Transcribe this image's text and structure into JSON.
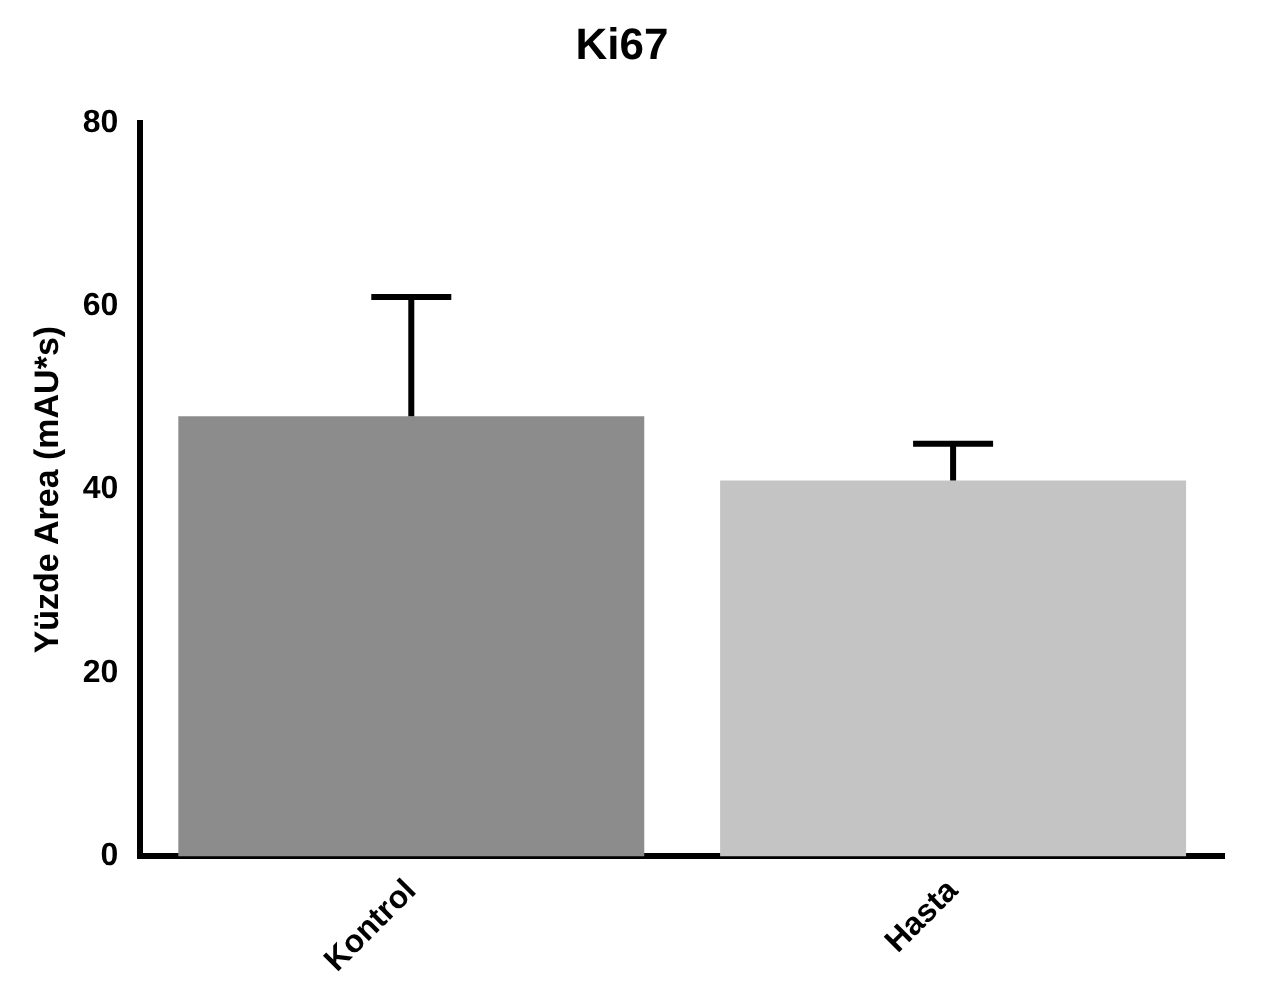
{
  "chart_data": {
    "type": "bar",
    "title": "Ki67",
    "ylabel": "Yüzde Area (mAU*s)",
    "categories": [
      "Kontrol",
      "Hasta"
    ],
    "values": [
      48,
      41
    ],
    "errors": [
      [
        48,
        61
      ],
      [
        41,
        45
      ]
    ],
    "colors": [
      "#8c8c8c",
      "#c4c4c4"
    ],
    "ylim": [
      0,
      80
    ],
    "yticks": [
      0,
      20,
      40,
      60,
      80
    ],
    "grid": false,
    "legend": false
  }
}
